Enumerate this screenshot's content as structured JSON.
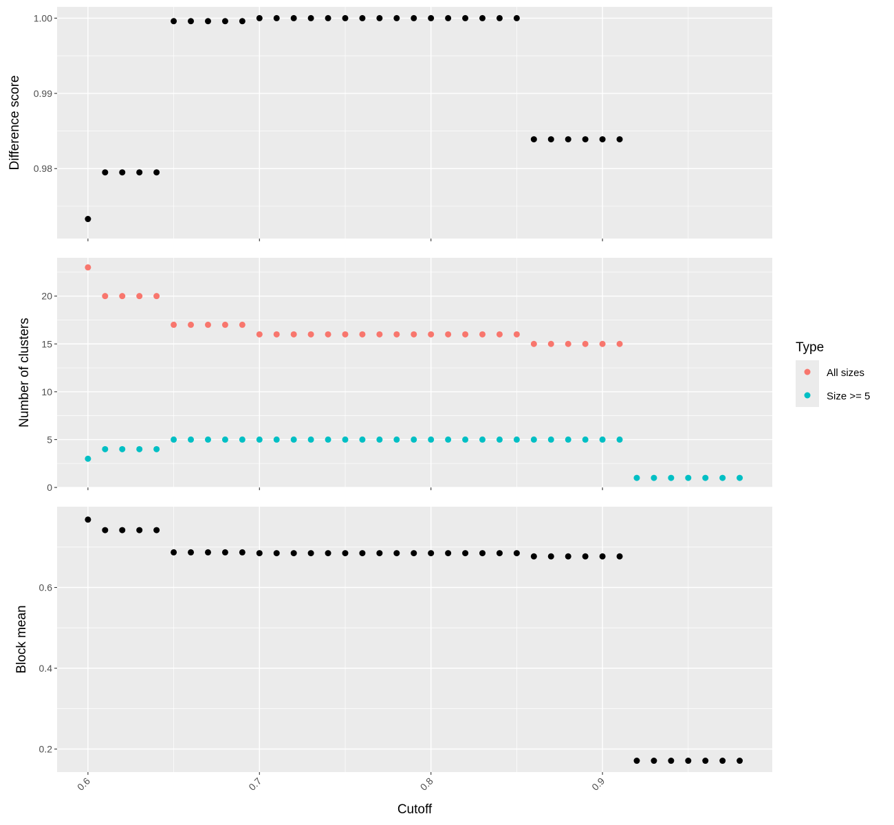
{
  "chart_data": {
    "type": "scatter",
    "xlabel": "Cutoff",
    "x_ticks": [
      "0.6",
      "0.7",
      "0.8",
      "0.9"
    ],
    "x_tick_values": [
      0.6,
      0.7,
      0.8,
      0.9
    ],
    "xlim": [
      0.582,
      0.999
    ],
    "grid": true,
    "legend": {
      "title": "Type",
      "placement": "right",
      "entries": [
        {
          "label": "All sizes",
          "color": "#F8766D"
        },
        {
          "label": "Size >= 5",
          "color": "#00BFC4"
        }
      ]
    },
    "panels": [
      {
        "ylabel": "Difference score",
        "ylim": [
          0.9707,
          1.0015
        ],
        "y_ticks": [
          "0.98",
          "0.99",
          "1.00"
        ],
        "y_tick_values": [
          0.98,
          0.99,
          1.0
        ],
        "series": [
          {
            "color": "#000000",
            "x": [
              0.6,
              0.61,
              0.62,
              0.63,
              0.64,
              0.65,
              0.66,
              0.67,
              0.68,
              0.69,
              0.7,
              0.71,
              0.72,
              0.73,
              0.74,
              0.75,
              0.76,
              0.77,
              0.78,
              0.79,
              0.8,
              0.81,
              0.82,
              0.83,
              0.84,
              0.85,
              0.86,
              0.87,
              0.88,
              0.89,
              0.9,
              0.91
            ],
            "y": [
              0.9733,
              0.9795,
              0.9795,
              0.9795,
              0.9795,
              0.9996,
              0.9996,
              0.9996,
              0.9996,
              0.9996,
              1.0,
              1.0,
              1.0,
              1.0,
              1.0,
              1.0,
              1.0,
              1.0,
              1.0,
              1.0,
              1.0,
              1.0,
              1.0,
              1.0,
              1.0,
              1.0,
              0.9839,
              0.9839,
              0.9839,
              0.9839,
              0.9839,
              0.9839
            ]
          }
        ]
      },
      {
        "ylabel": "Number of clusters",
        "ylim": [
          0,
          24
        ],
        "y_ticks": [
          "0",
          "5",
          "10",
          "15",
          "20"
        ],
        "y_tick_values": [
          0,
          5,
          10,
          15,
          20
        ],
        "series": [
          {
            "name": "All sizes",
            "color": "#F8766D",
            "x": [
              0.6,
              0.61,
              0.62,
              0.63,
              0.64,
              0.65,
              0.66,
              0.67,
              0.68,
              0.69,
              0.7,
              0.71,
              0.72,
              0.73,
              0.74,
              0.75,
              0.76,
              0.77,
              0.78,
              0.79,
              0.8,
              0.81,
              0.82,
              0.83,
              0.84,
              0.85,
              0.86,
              0.87,
              0.88,
              0.89,
              0.9,
              0.91
            ],
            "y": [
              23,
              20,
              20,
              20,
              20,
              17,
              17,
              17,
              17,
              17,
              16,
              16,
              16,
              16,
              16,
              16,
              16,
              16,
              16,
              16,
              16,
              16,
              16,
              16,
              16,
              16,
              15,
              15,
              15,
              15,
              15,
              15
            ]
          },
          {
            "name": "Size >= 5",
            "color": "#00BFC4",
            "x": [
              0.6,
              0.61,
              0.62,
              0.63,
              0.64,
              0.65,
              0.66,
              0.67,
              0.68,
              0.69,
              0.7,
              0.71,
              0.72,
              0.73,
              0.74,
              0.75,
              0.76,
              0.77,
              0.78,
              0.79,
              0.8,
              0.81,
              0.82,
              0.83,
              0.84,
              0.85,
              0.86,
              0.87,
              0.88,
              0.89,
              0.9,
              0.91,
              0.92,
              0.93,
              0.94,
              0.95,
              0.96,
              0.97,
              0.98
            ],
            "y": [
              3,
              4,
              4,
              4,
              4,
              5,
              5,
              5,
              5,
              5,
              5,
              5,
              5,
              5,
              5,
              5,
              5,
              5,
              5,
              5,
              5,
              5,
              5,
              5,
              5,
              5,
              5,
              5,
              5,
              5,
              5,
              5,
              1,
              1,
              1,
              1,
              1,
              1,
              1
            ]
          }
        ]
      },
      {
        "ylabel": "Block mean",
        "ylim": [
          0.143,
          0.8
        ],
        "y_ticks": [
          "0.2",
          "0.4",
          "0.6"
        ],
        "y_tick_values": [
          0.2,
          0.4,
          0.6
        ],
        "series": [
          {
            "color": "#000000",
            "x": [
              0.6,
              0.61,
              0.62,
              0.63,
              0.64,
              0.65,
              0.66,
              0.67,
              0.68,
              0.69,
              0.7,
              0.71,
              0.72,
              0.73,
              0.74,
              0.75,
              0.76,
              0.77,
              0.78,
              0.79,
              0.8,
              0.81,
              0.82,
              0.83,
              0.84,
              0.85,
              0.86,
              0.87,
              0.88,
              0.89,
              0.9,
              0.91,
              0.92,
              0.93,
              0.94,
              0.95,
              0.96,
              0.97,
              0.98
            ],
            "y": [
              0.768,
              0.742,
              0.742,
              0.742,
              0.742,
              0.687,
              0.687,
              0.687,
              0.687,
              0.687,
              0.685,
              0.685,
              0.685,
              0.685,
              0.685,
              0.685,
              0.685,
              0.685,
              0.685,
              0.685,
              0.685,
              0.685,
              0.685,
              0.685,
              0.685,
              0.685,
              0.677,
              0.677,
              0.677,
              0.677,
              0.677,
              0.677,
              0.171,
              0.171,
              0.171,
              0.171,
              0.171,
              0.171,
              0.171
            ]
          }
        ]
      }
    ]
  }
}
